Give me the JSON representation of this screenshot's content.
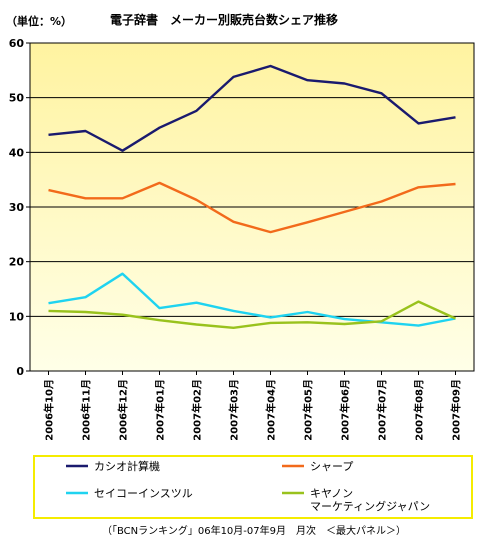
{
  "chart_data": {
    "type": "line",
    "title": "電子辞書　メーカー別販売台数シェア推移",
    "unit_label": "（単位：%）",
    "ylim": [
      0,
      60
    ],
    "y_ticks": [
      "0",
      "10",
      "20",
      "30",
      "40",
      "50",
      "60"
    ],
    "grid": true,
    "categories": [
      "2006年10月",
      "2006年11月",
      "2006年12月",
      "2007年01月",
      "2007年02月",
      "2007年03月",
      "2007年04月",
      "2007年05月",
      "2007年06月",
      "2007年07月",
      "2007年08月",
      "2007年09月"
    ],
    "series": [
      {
        "name": "カシオ計算機",
        "color": "#1a1a6e",
        "values": [
          43.2,
          43.9,
          40.3,
          44.5,
          47.6,
          53.8,
          55.8,
          53.2,
          52.6,
          50.8,
          45.3,
          46.4
        ]
      },
      {
        "name": "シャープ",
        "color": "#f26a1b",
        "values": [
          33.1,
          31.6,
          31.6,
          34.4,
          31.3,
          27.3,
          25.4,
          27.2,
          29.1,
          31.0,
          33.6,
          34.2
        ]
      },
      {
        "name": "セイコーインスツル",
        "color": "#1fd3f0",
        "values": [
          12.4,
          13.5,
          17.8,
          11.5,
          12.5,
          11.0,
          9.8,
          10.8,
          9.5,
          8.9,
          8.3,
          9.6
        ]
      },
      {
        "name": "キヤノン\nマーケティングジャパン",
        "color": "#99c21d",
        "values": [
          11.0,
          10.8,
          10.3,
          9.3,
          8.5,
          7.9,
          8.8,
          8.9,
          8.6,
          9.1,
          12.7,
          9.6
        ]
      }
    ],
    "legend_placement": "bottom",
    "footer": "（「BCNランキング」06年10月-07年9月　月次　＜最大パネル＞）"
  },
  "colors": {
    "plot_top": "#fff3a0",
    "plot_bottom": "#ffffe8",
    "legend_border": "#f5ec00"
  }
}
